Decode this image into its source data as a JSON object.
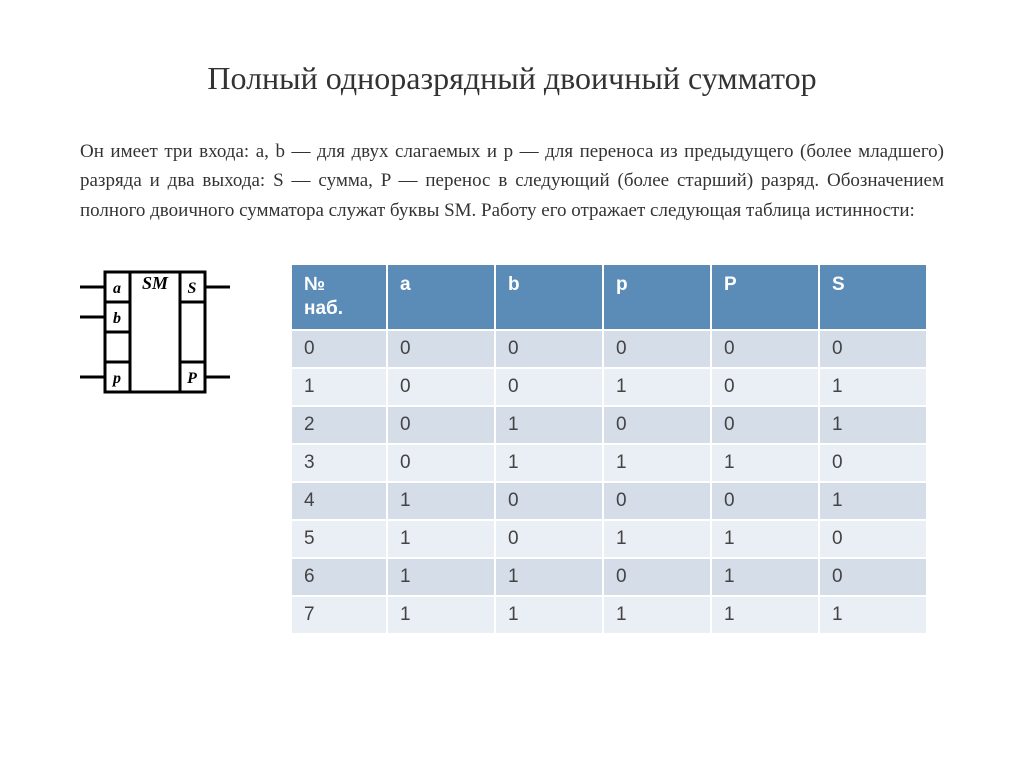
{
  "title": "Полный одноразрядный двоичный сумматор",
  "description": "Он имеет три входа: a, b — для двух слагаемых и p — для переноса из предыдущего (более младшего) разряда и два выхода: S — сумма, P — перенос в следующий (более старший) разряд. Обозначением полного двоичного сумматора служат буквы SM. Работу его отражает следующая таблица истинности:",
  "schematic": {
    "block_label": "SM",
    "inputs": [
      "a",
      "b",
      "p"
    ],
    "outputs": [
      "S",
      "P"
    ],
    "stroke": "#000000",
    "stroke_width": 3,
    "font_size": 16,
    "font_weight": "bold",
    "font_style": "italic"
  },
  "truth_table": {
    "type": "table",
    "header_bg": "#5b8cb8",
    "header_fg": "#ffffff",
    "row_even_bg": "#d4dde8",
    "row_odd_bg": "#eaeef5",
    "cell_text_color": "#444444",
    "border_color": "#ffffff",
    "font_size": 19,
    "columns": [
      "№ наб.",
      "a",
      "b",
      "p",
      "P",
      "S"
    ],
    "rows": [
      [
        "0",
        "0",
        "0",
        "0",
        "0",
        "0"
      ],
      [
        "1",
        "0",
        "0",
        "1",
        "0",
        "1"
      ],
      [
        "2",
        "0",
        "1",
        "0",
        "0",
        "1"
      ],
      [
        "3",
        "0",
        "1",
        "1",
        "1",
        "0"
      ],
      [
        "4",
        "1",
        "0",
        "0",
        "0",
        "1"
      ],
      [
        "5",
        "1",
        "0",
        "1",
        "1",
        "0"
      ],
      [
        "6",
        "1",
        "1",
        "0",
        "1",
        "0"
      ],
      [
        "7",
        "1",
        "1",
        "1",
        "1",
        "1"
      ]
    ]
  }
}
